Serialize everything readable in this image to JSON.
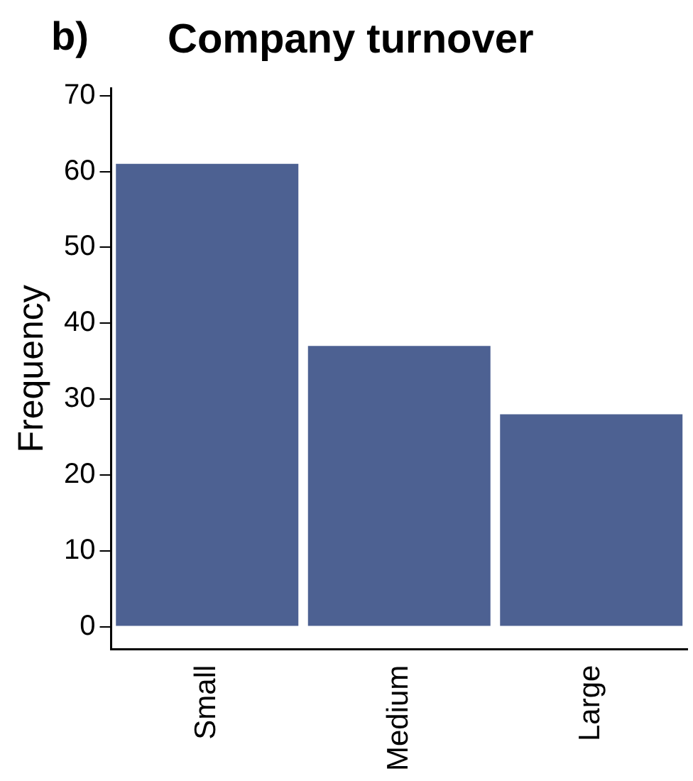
{
  "chart_data": {
    "type": "bar",
    "title": "Company turnover",
    "ylabel": "Frequency",
    "annotations": [
      "b)"
    ],
    "categories": [
      "Small",
      "Medium",
      "Large"
    ],
    "values": [
      61,
      37,
      28
    ],
    "color": "#4d6192",
    "ylim": [
      -3,
      71
    ],
    "yticks": [
      0,
      10,
      20,
      30,
      40,
      50,
      60,
      70
    ],
    "grid": false,
    "legend": false
  }
}
